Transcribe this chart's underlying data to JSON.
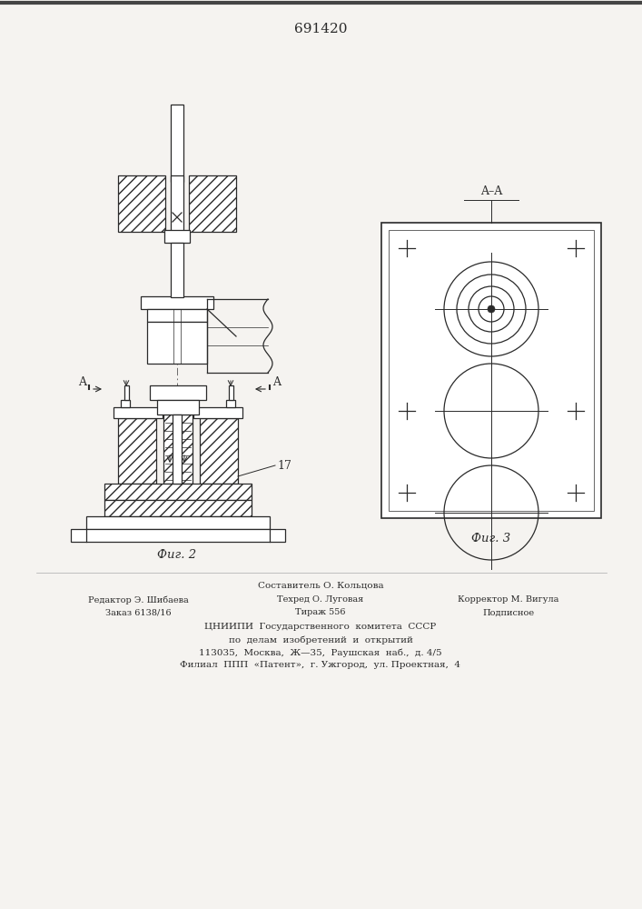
{
  "patent_number": "691420",
  "fig2_label": "Фиг. 2",
  "fig3_label": "Фиг. 3",
  "section_label": "A–A",
  "part_label": "17",
  "background_color": "#f5f3f0",
  "line_color": "#2a2a2a",
  "footer_line1": "Составитель О. Кольцова",
  "footer_line2_left": "Редактор Э. Шибаева",
  "footer_line2_mid": "Техред О. Луговая",
  "footer_line2_right": "Корректор М. Вигула",
  "footer_line3_left": "Заказ 6138/16",
  "footer_line3_mid": "Тираж 556",
  "footer_line3_right": "Подписное",
  "footer_line4": "ЦНИИПИ  Государственного  комитета  СССР",
  "footer_line5": "по  делам  изобретений  и  открытий",
  "footer_line6": "113035,  Москва,  Ж—35,  Раушская  наб.,  д. 4/5",
  "footer_line7": "Филиал  ППП  «Патент»,  г. Ужгород,  ул. Проектная,  4"
}
